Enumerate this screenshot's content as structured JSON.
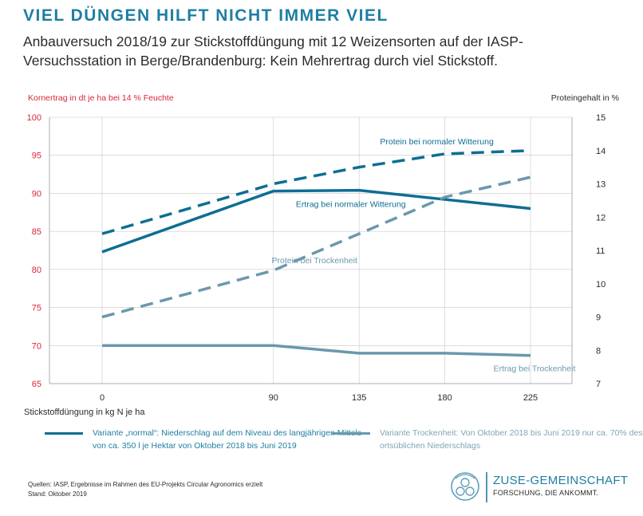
{
  "header": {
    "title": "VIEL DÜNGEN HILFT NICHT IMMER VIEL",
    "subtitle": "Anbauversuch 2018/19 zur Stickstoffdüngung mit 12 Weizensorten auf der IASP-Versuchsstation in Berge/Brandenburg: Kein Mehrertrag durch viel Stickstoff."
  },
  "colors": {
    "title": "#1f7ea3",
    "left_axis": "#d8263a",
    "normal": "#0e6e93",
    "dry": "#6a98ac",
    "grid": "#c8c8c8"
  },
  "chart_data": {
    "type": "line",
    "title": "",
    "xlabel": "Stickstoffdüngung in kg N je ha",
    "ylabel": "Kornertrag in dt je ha bei 14 % Feuchte",
    "y2label": "Proteingehalt in %",
    "categories": [
      "0",
      "90",
      "135",
      "180",
      "225"
    ],
    "x": [
      0,
      90,
      135,
      180,
      225
    ],
    "ylim": [
      65,
      100
    ],
    "yticks": [
      65,
      70,
      75,
      80,
      85,
      90,
      95,
      100
    ],
    "y2lim": [
      7,
      15
    ],
    "y2ticks": [
      7,
      8,
      9,
      10,
      11,
      12,
      13,
      14,
      15
    ],
    "grid": true,
    "series": [
      {
        "name": "Protein bei normaler Witterung",
        "axis": "right",
        "style": "dashed",
        "color": "#0e6e93",
        "values": [
          11.5,
          13.0,
          13.5,
          13.9,
          14.0
        ]
      },
      {
        "name": "Ertrag bei normaler Witterung",
        "axis": "left",
        "style": "solid",
        "color": "#0e6e93",
        "values": [
          82.3,
          90.3,
          90.4,
          89.2,
          88.0
        ]
      },
      {
        "name": "Protein bei Trockenheit",
        "axis": "right",
        "style": "dashed",
        "color": "#6a98ac",
        "values": [
          9.0,
          10.4,
          11.5,
          12.6,
          13.2
        ]
      },
      {
        "name": "Ertrag bei Trockenheit",
        "axis": "left",
        "style": "solid",
        "color": "#6a98ac",
        "values": [
          70.0,
          70.0,
          69.0,
          69.0,
          68.7
        ]
      }
    ]
  },
  "legend": {
    "normal": "Variante „normal“: Niederschlag auf dem Niveau des langjährigen Mittels von ca. 350 l je Hektar von Oktober 2018 bis Juni 2019",
    "dry": "Variante Trockenheit: Von Oktober 2018 bis Juni 2019 nur ca. 70% des ortsüblichen Niederschlags"
  },
  "footer": {
    "sources": "Quellen: IASP, Ergebnisse im Rahmen des EU-Projekts Circular Agronomics erzielt",
    "date": "Stand: Oktober 2019"
  },
  "logo": {
    "name": "ZUSE-GEMEINSCHAFT",
    "tagline": "FORSCHUNG, DIE ANKOMMT."
  }
}
